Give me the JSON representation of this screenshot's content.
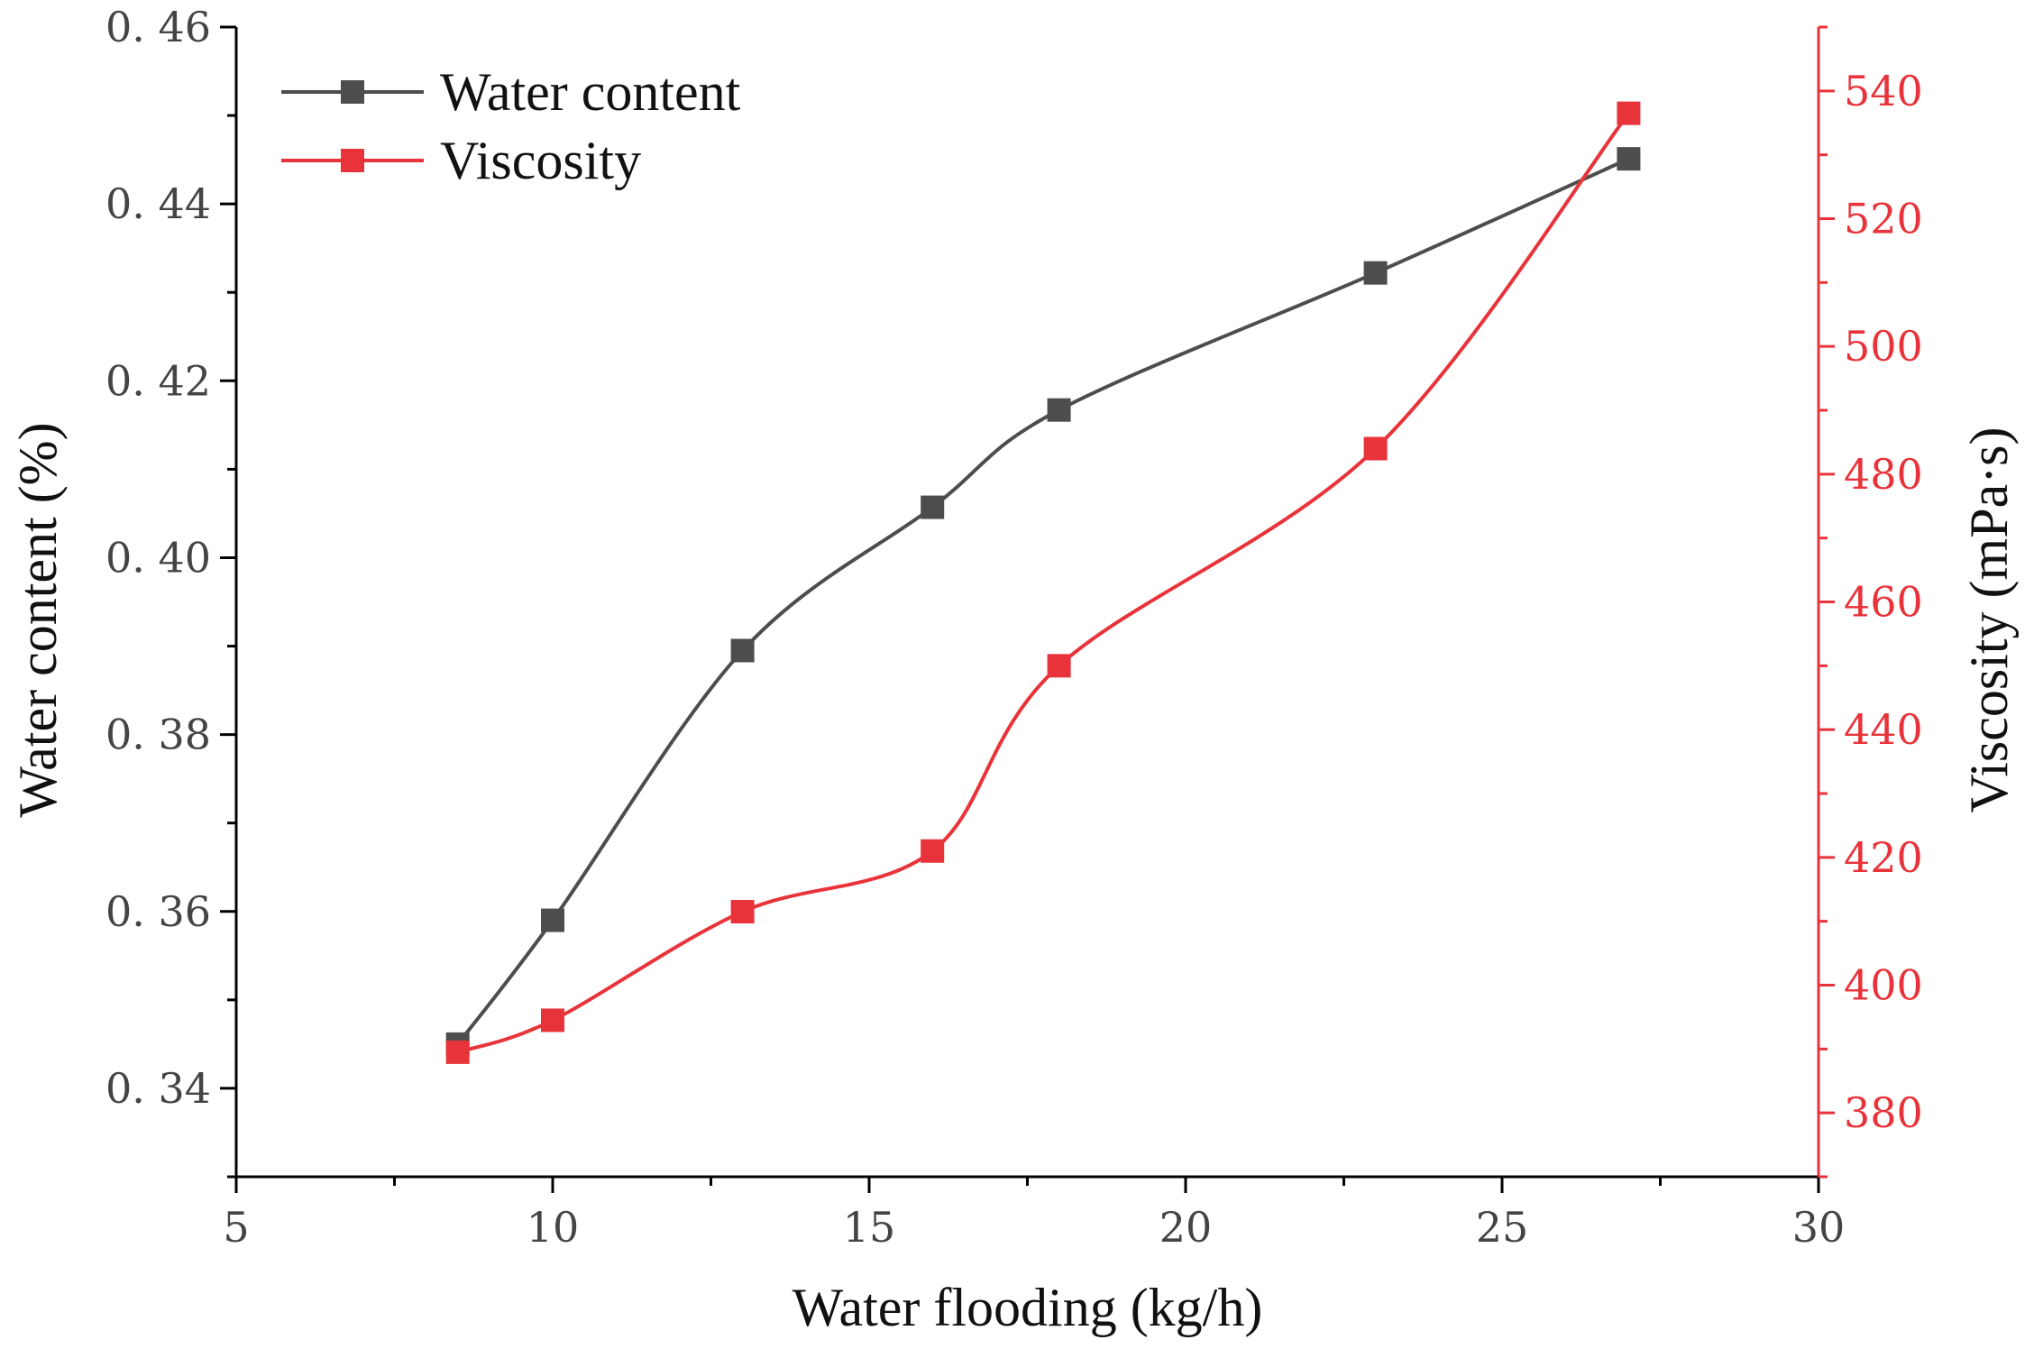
{
  "chart_data": {
    "type": "line",
    "xlabel": "Water flooding (kg/h)",
    "ylabel_left": "Water content (%)",
    "ylabel_right": "Viscosity (mPa·s)",
    "xlim": [
      5,
      30
    ],
    "ylim_left": [
      0.33,
      0.46
    ],
    "ylim_right": [
      370,
      550
    ],
    "x_ticks": [
      5,
      10,
      15,
      20,
      25,
      30
    ],
    "x_tick_labels": [
      "5",
      "10",
      "15",
      "20",
      "25",
      "30"
    ],
    "y_left_ticks": [
      0.34,
      0.36,
      0.38,
      0.4,
      0.42,
      0.44,
      0.46
    ],
    "y_left_tick_labels": [
      "0. 34",
      "0. 36",
      "0. 38",
      "0. 40",
      "0. 42",
      "0. 44",
      "0. 46"
    ],
    "y_right_ticks": [
      380,
      400,
      420,
      440,
      460,
      480,
      500,
      520,
      540
    ],
    "y_right_tick_labels": [
      "380",
      "400",
      "420",
      "440",
      "460",
      "480",
      "500",
      "520",
      "540"
    ],
    "grid": false,
    "legend_position": "top-left",
    "series": [
      {
        "name": "Water content",
        "axis": "left",
        "color": "#4d4d4d",
        "x": [
          8.5,
          10,
          13,
          16,
          18,
          23,
          27
        ],
        "y": [
          0.345,
          0.359,
          0.3895,
          0.4057,
          0.4167,
          0.4322,
          0.4451
        ]
      },
      {
        "name": "Viscosity",
        "axis": "right",
        "color": "#e8333a",
        "x": [
          8.5,
          10,
          13,
          16,
          18,
          23,
          27
        ],
        "y": [
          389.5,
          394.5,
          411.5,
          421,
          450,
          484,
          536.5
        ]
      }
    ]
  }
}
